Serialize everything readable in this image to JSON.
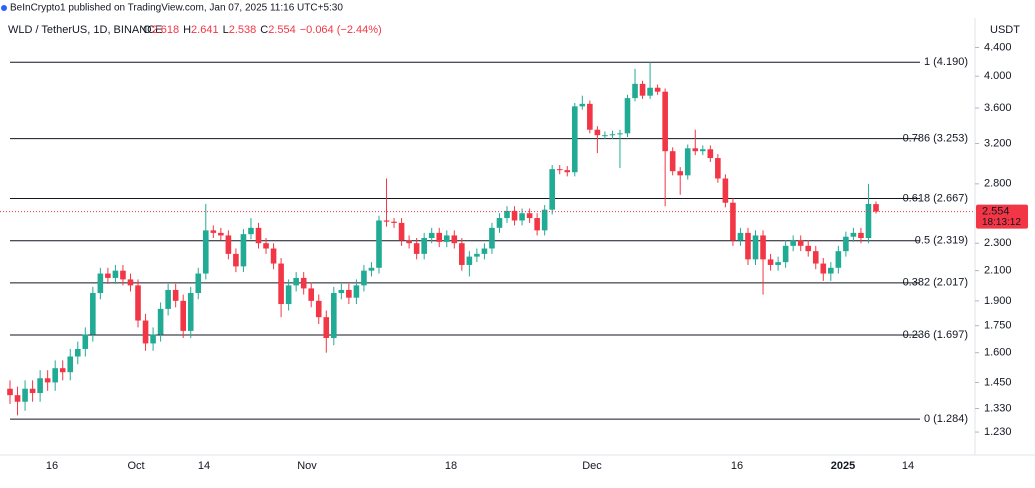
{
  "header": {
    "publisher": "BeInCrypto1 published on TradingView.com, Jan 07, 2025 11:16 UTC+5:30"
  },
  "chart_data": {
    "type": "candlestick",
    "title": "WLD / TetherUS, 1D, BINANCE",
    "ohlc_legend": [
      {
        "key": "O",
        "value": 2.618
      },
      {
        "key": "H",
        "value": 2.641
      },
      {
        "key": "L",
        "value": 2.538
      },
      {
        "key": "C",
        "value": 2.554
      }
    ],
    "change": "−0.064 (−2.44%)",
    "y_unit": "USDT",
    "log_scale": true,
    "grid": false,
    "up_color": "#22ab94",
    "down_color": "#f23645",
    "ylim": [
      1.14,
      4.51
    ],
    "yticks": [
      {
        "value": 4.4,
        "label": "4.400"
      },
      {
        "value": 4.0,
        "label": "4.000"
      },
      {
        "value": 3.6,
        "label": "3.600"
      },
      {
        "value": 3.2,
        "label": "3.200"
      },
      {
        "value": 2.8,
        "label": "2.800"
      },
      {
        "value": 2.3,
        "label": "2.300"
      },
      {
        "value": 2.1,
        "label": "2.100"
      },
      {
        "value": 1.9,
        "label": "1.900"
      },
      {
        "value": 1.75,
        "label": "1.750"
      },
      {
        "value": 1.6,
        "label": "1.600"
      },
      {
        "value": 1.45,
        "label": "1.450"
      },
      {
        "value": 1.33,
        "label": "1.330"
      },
      {
        "value": 1.23,
        "label": "1.230"
      }
    ],
    "x_labels": [
      "16",
      "Oct",
      "14",
      "Nov",
      "18",
      "Dec",
      "16",
      "2025",
      "14"
    ],
    "fib_levels": [
      {
        "label": "1 (4.190)",
        "value": 4.19
      },
      {
        "label": "0.786 (3.253)",
        "value": 3.253
      },
      {
        "label": "0.618 (2.667)",
        "value": 2.667
      },
      {
        "label": "0.5 (2.319)",
        "value": 2.319
      },
      {
        "label": "0.382 (2.017)",
        "value": 2.017
      },
      {
        "label": "0.236 (1.697)",
        "value": 1.697
      },
      {
        "label": "0 (1.284)",
        "value": 1.284
      }
    ],
    "countdown": "18:13:12",
    "open": [
      1.42,
      1.39,
      1.36,
      1.42,
      1.4,
      1.47,
      1.45,
      1.52,
      1.5,
      1.58,
      1.62,
      1.7,
      1.95,
      2.08,
      2.05,
      2.1,
      2.04,
      2.0,
      1.78,
      1.65,
      1.7,
      1.85,
      1.97,
      1.9,
      1.72,
      1.95,
      2.08,
      2.4,
      2.38,
      2.36,
      2.22,
      2.13,
      2.37,
      2.42,
      2.3,
      2.26,
      2.15,
      1.88,
      2.0,
      2.05,
      1.98,
      1.9,
      1.8,
      1.68,
      1.95,
      1.97,
      1.92,
      2.0,
      2.1,
      2.12,
      2.48,
      2.47,
      2.46,
      2.32,
      2.3,
      2.22,
      2.34,
      2.38,
      2.31,
      2.36,
      2.3,
      2.14,
      2.2,
      2.22,
      2.26,
      2.42,
      2.5,
      2.56,
      2.48,
      2.54,
      2.5,
      2.4,
      2.57,
      2.94,
      2.93,
      2.91,
      3.62,
      3.65,
      3.35,
      3.29,
      3.29,
      3.3,
      3.31,
      3.72,
      3.9,
      3.75,
      3.85,
      3.8,
      3.12,
      2.92,
      2.88,
      3.15,
      3.12,
      3.14,
      3.05,
      2.85,
      2.63,
      2.32,
      2.38,
      2.18,
      2.36,
      2.18,
      2.14,
      2.16,
      2.28,
      2.32,
      2.28,
      2.24,
      2.15,
      2.08,
      2.12,
      2.24,
      2.35,
      2.38,
      2.34,
      2.618
    ],
    "high": [
      1.46,
      1.43,
      1.46,
      1.46,
      1.51,
      1.51,
      1.56,
      1.56,
      1.62,
      1.66,
      1.74,
      1.99,
      2.12,
      2.12,
      2.14,
      2.14,
      2.08,
      2.04,
      1.82,
      1.74,
      1.89,
      2.01,
      2.01,
      1.94,
      1.99,
      2.12,
      2.62,
      2.44,
      2.42,
      2.4,
      2.26,
      2.41,
      2.5,
      2.46,
      2.34,
      2.3,
      2.19,
      2.04,
      2.09,
      2.09,
      2.02,
      1.94,
      1.84,
      1.99,
      2.01,
      2.01,
      2.04,
      2.14,
      2.16,
      2.52,
      2.85,
      2.5,
      2.5,
      2.36,
      2.34,
      2.38,
      2.42,
      2.42,
      2.4,
      2.4,
      2.34,
      2.24,
      2.26,
      2.3,
      2.46,
      2.54,
      2.6,
      2.6,
      2.58,
      2.58,
      2.54,
      2.61,
      2.98,
      2.98,
      2.97,
      3.66,
      3.75,
      3.69,
      3.39,
      3.33,
      3.34,
      3.35,
      3.76,
      4.1,
      3.94,
      4.19,
      3.89,
      3.84,
      3.16,
      2.96,
      3.19,
      3.35,
      3.18,
      3.18,
      3.09,
      2.89,
      2.67,
      2.42,
      2.42,
      2.4,
      2.4,
      2.22,
      2.2,
      2.32,
      2.36,
      2.36,
      2.32,
      2.28,
      2.19,
      2.16,
      2.28,
      2.39,
      2.42,
      2.42,
      2.8,
      2.641
    ],
    "low": [
      1.35,
      1.3,
      1.32,
      1.36,
      1.36,
      1.41,
      1.41,
      1.46,
      1.46,
      1.54,
      1.58,
      1.66,
      1.91,
      2.01,
      2.01,
      2.0,
      1.96,
      1.74,
      1.61,
      1.61,
      1.66,
      1.81,
      1.86,
      1.68,
      1.68,
      1.91,
      2.04,
      2.34,
      2.32,
      2.18,
      2.09,
      2.09,
      2.33,
      2.26,
      2.22,
      2.11,
      1.8,
      1.84,
      1.96,
      1.94,
      1.86,
      1.76,
      1.6,
      1.64,
      1.91,
      1.88,
      1.88,
      1.96,
      2.06,
      2.08,
      2.43,
      2.42,
      2.28,
      2.26,
      2.18,
      2.18,
      2.3,
      2.27,
      2.27,
      2.26,
      2.1,
      2.06,
      2.16,
      2.18,
      2.22,
      2.38,
      2.46,
      2.44,
      2.44,
      2.46,
      2.36,
      2.36,
      2.53,
      2.89,
      2.87,
      2.87,
      3.58,
      3.31,
      3.1,
      3.25,
      3.25,
      2.95,
      3.27,
      3.68,
      3.71,
      3.71,
      3.76,
      2.6,
      2.88,
      2.7,
      2.84,
      3.08,
      3.08,
      3.01,
      2.81,
      2.59,
      2.28,
      2.28,
      2.14,
      2.14,
      1.94,
      2.1,
      2.1,
      2.12,
      2.24,
      2.24,
      2.2,
      2.11,
      2.03,
      2.03,
      2.08,
      2.2,
      2.31,
      2.3,
      2.3,
      2.538
    ],
    "close": [
      1.39,
      1.36,
      1.42,
      1.4,
      1.47,
      1.45,
      1.52,
      1.5,
      1.58,
      1.62,
      1.7,
      1.95,
      2.08,
      2.05,
      2.1,
      2.04,
      2.0,
      1.78,
      1.65,
      1.7,
      1.85,
      1.97,
      1.9,
      1.72,
      1.95,
      2.08,
      2.4,
      2.38,
      2.36,
      2.22,
      2.13,
      2.37,
      2.42,
      2.3,
      2.26,
      2.15,
      1.88,
      2.0,
      2.05,
      1.98,
      1.9,
      1.8,
      1.68,
      1.95,
      1.97,
      1.92,
      2.0,
      2.1,
      2.12,
      2.48,
      2.47,
      2.46,
      2.32,
      2.3,
      2.22,
      2.34,
      2.38,
      2.31,
      2.36,
      2.3,
      2.14,
      2.2,
      2.22,
      2.26,
      2.42,
      2.5,
      2.56,
      2.48,
      2.54,
      2.5,
      2.4,
      2.57,
      2.94,
      2.93,
      2.91,
      3.62,
      3.65,
      3.35,
      3.29,
      3.29,
      3.3,
      3.31,
      3.72,
      3.9,
      3.75,
      3.85,
      3.8,
      3.12,
      2.92,
      2.88,
      3.15,
      3.12,
      3.14,
      3.05,
      2.85,
      2.63,
      2.32,
      2.38,
      2.18,
      2.36,
      2.18,
      2.14,
      2.16,
      2.28,
      2.32,
      2.28,
      2.24,
      2.15,
      2.08,
      2.12,
      2.24,
      2.35,
      2.38,
      2.34,
      2.62,
      2.554
    ]
  }
}
